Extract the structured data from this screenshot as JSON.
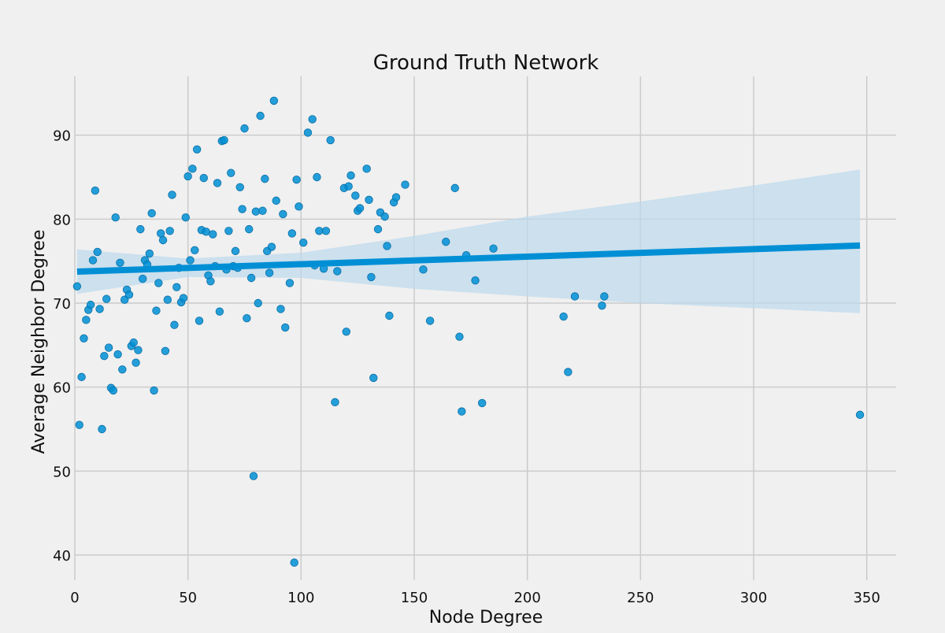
{
  "chart_data": {
    "type": "scatter",
    "title": "Ground Truth Network",
    "xlabel": "Node Degree",
    "ylabel": "Average Neighbor Degree",
    "xlim": [
      0,
      363
    ],
    "ylim": [
      37,
      97
    ],
    "xticks": [
      0,
      50,
      100,
      150,
      200,
      250,
      300,
      350
    ],
    "yticks": [
      40,
      50,
      60,
      70,
      80,
      90
    ],
    "grid": true,
    "colors": {
      "background": "#f0f0f0",
      "grid": "#cbcbcb",
      "points": "#008fd5",
      "regression_line": "#008fd5",
      "confidence_band": "#bcd9ec"
    },
    "regression": {
      "x": [
        1,
        347
      ],
      "y": [
        73.75,
        76.85
      ],
      "ci_x": [
        1,
        50,
        100,
        150,
        200,
        250,
        300,
        347
      ],
      "ci_upper": [
        76.4,
        75.3,
        76.0,
        78.0,
        80.3,
        82.1,
        84.0,
        85.9
      ],
      "ci_lower": [
        71.1,
        73.1,
        73.0,
        71.7,
        70.8,
        70.0,
        69.4,
        68.8
      ]
    },
    "points": [
      [
        1,
        72.0
      ],
      [
        2,
        55.5
      ],
      [
        3,
        61.2
      ],
      [
        4,
        65.8
      ],
      [
        5,
        68.0
      ],
      [
        6,
        69.2
      ],
      [
        7,
        69.8
      ],
      [
        8,
        75.1
      ],
      [
        9,
        83.4
      ],
      [
        10,
        76.1
      ],
      [
        11,
        69.3
      ],
      [
        12,
        55.0
      ],
      [
        13,
        63.7
      ],
      [
        14,
        70.5
      ],
      [
        15,
        64.7
      ],
      [
        16,
        59.9
      ],
      [
        17,
        59.6
      ],
      [
        18,
        80.2
      ],
      [
        19,
        63.9
      ],
      [
        20,
        74.8
      ],
      [
        21,
        62.1
      ],
      [
        22,
        70.4
      ],
      [
        23,
        71.6
      ],
      [
        24,
        71.0
      ],
      [
        25,
        64.9
      ],
      [
        26,
        65.3
      ],
      [
        27,
        62.9
      ],
      [
        28,
        64.4
      ],
      [
        29,
        78.8
      ],
      [
        30,
        72.9
      ],
      [
        31,
        75.1
      ],
      [
        32,
        74.6
      ],
      [
        33,
        75.9
      ],
      [
        34,
        80.7
      ],
      [
        35,
        59.6
      ],
      [
        36,
        69.1
      ],
      [
        37,
        72.4
      ],
      [
        38,
        78.3
      ],
      [
        39,
        77.5
      ],
      [
        40,
        64.3
      ],
      [
        41,
        70.4
      ],
      [
        42,
        78.6
      ],
      [
        43,
        82.9
      ],
      [
        44,
        67.4
      ],
      [
        45,
        71.9
      ],
      [
        46,
        74.2
      ],
      [
        47,
        70.1
      ],
      [
        48,
        70.6
      ],
      [
        49,
        80.2
      ],
      [
        50,
        85.1
      ],
      [
        51,
        75.1
      ],
      [
        52,
        86.0
      ],
      [
        53,
        76.3
      ],
      [
        54,
        88.3
      ],
      [
        55,
        67.9
      ],
      [
        56,
        78.7
      ],
      [
        57,
        84.9
      ],
      [
        58,
        78.5
      ],
      [
        59,
        73.3
      ],
      [
        60,
        72.6
      ],
      [
        61,
        78.2
      ],
      [
        62,
        74.4
      ],
      [
        63,
        84.3
      ],
      [
        64,
        69.0
      ],
      [
        65,
        89.3
      ],
      [
        66,
        89.4
      ],
      [
        67,
        74.0
      ],
      [
        68,
        78.6
      ],
      [
        69,
        85.5
      ],
      [
        70,
        74.4
      ],
      [
        71,
        76.2
      ],
      [
        72,
        74.2
      ],
      [
        73,
        83.8
      ],
      [
        74,
        81.2
      ],
      [
        75,
        90.8
      ],
      [
        76,
        68.2
      ],
      [
        77,
        78.8
      ],
      [
        78,
        73.0
      ],
      [
        79,
        49.4
      ],
      [
        80,
        80.9
      ],
      [
        81,
        70.0
      ],
      [
        82,
        92.3
      ],
      [
        83,
        81.0
      ],
      [
        84,
        84.8
      ],
      [
        85,
        76.2
      ],
      [
        86,
        73.6
      ],
      [
        87,
        76.7
      ],
      [
        88,
        94.1
      ],
      [
        89,
        82.2
      ],
      [
        91,
        69.3
      ],
      [
        92,
        80.6
      ],
      [
        93,
        67.1
      ],
      [
        95,
        72.4
      ],
      [
        96,
        78.3
      ],
      [
        97,
        39.1
      ],
      [
        98,
        84.7
      ],
      [
        99,
        81.5
      ],
      [
        101,
        77.2
      ],
      [
        103,
        90.3
      ],
      [
        105,
        91.9
      ],
      [
        106,
        74.5
      ],
      [
        107,
        85.0
      ],
      [
        108,
        78.6
      ],
      [
        110,
        74.1
      ],
      [
        111,
        78.6
      ],
      [
        113,
        89.4
      ],
      [
        115,
        58.2
      ],
      [
        116,
        73.8
      ],
      [
        119,
        83.7
      ],
      [
        120,
        66.6
      ],
      [
        121,
        83.9
      ],
      [
        122,
        85.2
      ],
      [
        124,
        82.8
      ],
      [
        125,
        81.0
      ],
      [
        126,
        81.3
      ],
      [
        129,
        86.0
      ],
      [
        130,
        82.3
      ],
      [
        131,
        73.1
      ],
      [
        132,
        61.1
      ],
      [
        134,
        78.8
      ],
      [
        135,
        80.8
      ],
      [
        137,
        80.3
      ],
      [
        138,
        76.8
      ],
      [
        139,
        68.5
      ],
      [
        141,
        82.0
      ],
      [
        142,
        82.6
      ],
      [
        146,
        84.1
      ],
      [
        154,
        74.0
      ],
      [
        157,
        67.9
      ],
      [
        164,
        77.3
      ],
      [
        168,
        83.7
      ],
      [
        170,
        66.0
      ],
      [
        171,
        57.1
      ],
      [
        173,
        75.7
      ],
      [
        177,
        72.7
      ],
      [
        180,
        58.1
      ],
      [
        185,
        76.5
      ],
      [
        216,
        68.4
      ],
      [
        218,
        61.8
      ],
      [
        221,
        70.8
      ],
      [
        233,
        69.7
      ],
      [
        234,
        70.8
      ],
      [
        347,
        56.7
      ]
    ]
  }
}
